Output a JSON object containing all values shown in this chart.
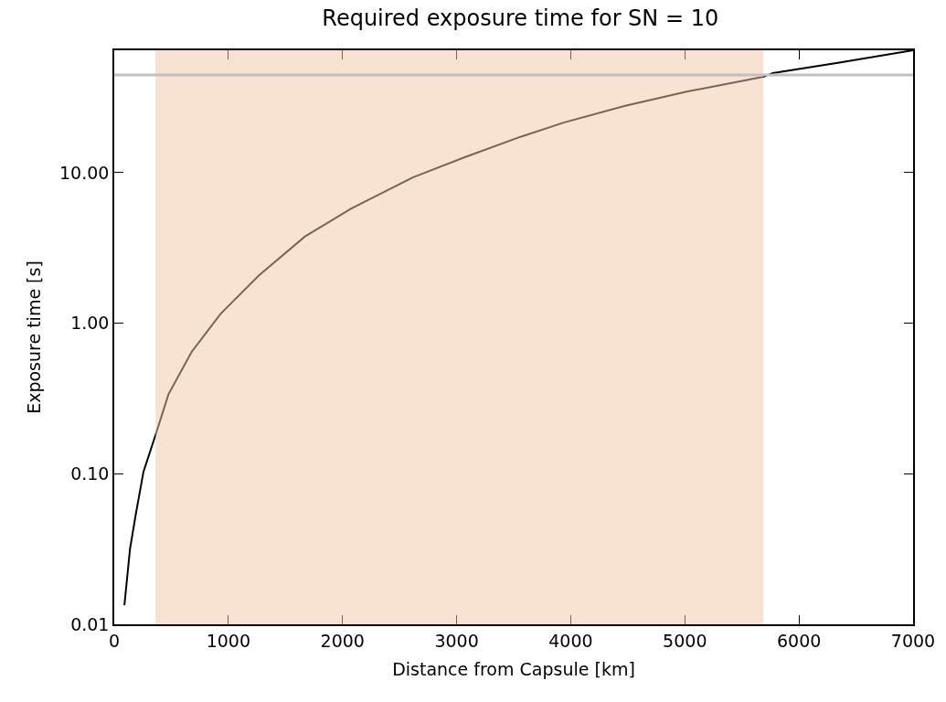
{
  "chart_data": {
    "type": "line",
    "title": "Required exposure time for SN = 10",
    "xlabel": "Distance from Capsule [km]",
    "ylabel": "Exposure time [s]",
    "x": [
      89,
      138,
      189,
      256,
      361,
      475,
      678,
      930,
      1268,
      1672,
      2077,
      2616,
      3088,
      3560,
      3938,
      4477,
      5016,
      5688,
      5770,
      6365,
      7000
    ],
    "series": [
      {
        "color": "#000000",
        "values": [
          0.0134,
          0.0316,
          0.054,
          0.103,
          0.18,
          0.337,
          0.645,
          1.15,
          2.08,
          3.77,
          5.78,
          9.3,
          12.8,
          17.3,
          21.5,
          27.8,
          34.5,
          43.3,
          45.9,
          54,
          65
        ]
      }
    ],
    "log": "y",
    "xlim": [
      0,
      7000
    ],
    "ylim": [
      0.01,
      65
    ],
    "xticks": [
      0,
      1000,
      2000,
      3000,
      4000,
      5000,
      6000,
      7000
    ],
    "yticks": [
      {
        "value": 0.01,
        "label": "0.01"
      },
      {
        "value": 0.1,
        "label": "0.10"
      },
      {
        "value": 1,
        "label": "1.00"
      },
      {
        "value": 10,
        "label": "10.00"
      }
    ],
    "ref_lines": [
      {
        "axis": "y",
        "value": 44.5,
        "color": "#c0c0c0"
      }
    ],
    "bands": [
      {
        "axis": "x",
        "from": 361,
        "to": 5688,
        "color": "#f5c6a5"
      }
    ],
    "marker": "none",
    "line_style": "solid"
  }
}
